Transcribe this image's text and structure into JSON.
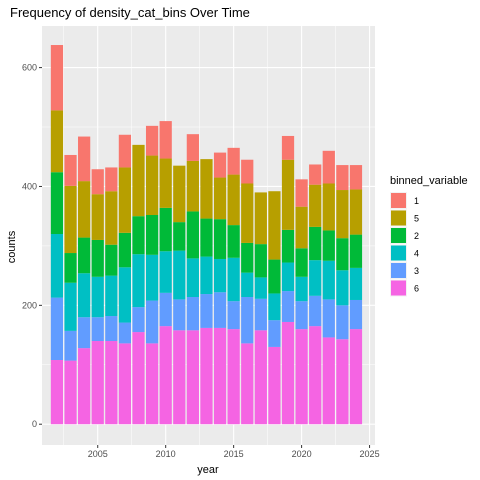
{
  "chart_data": {
    "type": "bar",
    "stacked": true,
    "title": "Frequency of density_cat_bins Over Time",
    "xlabel": "year",
    "ylabel": "counts",
    "xlim": [
      2000.9,
      2025.4
    ],
    "ylim": [
      -35,
      670
    ],
    "x_ticks": [
      2005,
      2010,
      2015,
      2020,
      2025
    ],
    "y_ticks": [
      0,
      200,
      400,
      600
    ],
    "x_tick_labels": [
      "2005",
      "2010",
      "2015",
      "2020",
      "2025"
    ],
    "y_tick_labels": [
      "0",
      "200",
      "400",
      "600"
    ],
    "grid": true,
    "legend_position": "right",
    "legend_title": "binned_variable",
    "x": [
      2002,
      2003,
      2004,
      2005,
      2006,
      2007,
      2008,
      2009,
      2010,
      2011,
      2012,
      2013,
      2014,
      2015,
      2016,
      2017,
      2018,
      2019,
      2020,
      2021,
      2022,
      2023,
      2024
    ],
    "series": [
      {
        "name": "6",
        "color": "#F564E3",
        "values": [
          108,
          107,
          128,
          140,
          140,
          136,
          155,
          136,
          165,
          158,
          158,
          162,
          162,
          160,
          136,
          158,
          130,
          172,
          160,
          165,
          146,
          143,
          160
        ]
      },
      {
        "name": "3",
        "color": "#619CFF",
        "values": [
          105,
          50,
          52,
          40,
          42,
          35,
          42,
          72,
          56,
          52,
          56,
          57,
          60,
          47,
          78,
          53,
          45,
          52,
          47,
          51,
          64,
          57,
          49
        ]
      },
      {
        "name": "4",
        "color": "#00BFC4",
        "values": [
          107,
          81,
          74,
          68,
          68,
          93,
          89,
          77,
          70,
          82,
          65,
          63,
          56,
          73,
          41,
          36,
          45,
          48,
          41,
          60,
          65,
          59,
          54
        ]
      },
      {
        "name": "2",
        "color": "#00BA38",
        "values": [
          104,
          50,
          60,
          62,
          52,
          58,
          64,
          67,
          73,
          48,
          79,
          64,
          67,
          55,
          50,
          56,
          57,
          55,
          48,
          56,
          51,
          54,
          56
        ]
      },
      {
        "name": "5",
        "color": "#B79F00",
        "values": [
          104,
          113,
          95,
          77,
          90,
          110,
          120,
          100,
          83,
          95,
          85,
          100,
          70,
          85,
          100,
          87,
          115,
          118,
          70,
          71,
          79,
          81,
          76
        ]
      },
      {
        "name": "1",
        "color": "#F8766D",
        "values": [
          110,
          52,
          75,
          42,
          40,
          55,
          0,
          50,
          63,
          0,
          45,
          0,
          42,
          45,
          40,
          0,
          0,
          40,
          46,
          34,
          55,
          42,
          41
        ]
      }
    ],
    "legend_order": [
      "1",
      "5",
      "2",
      "4",
      "3",
      "6"
    ]
  }
}
